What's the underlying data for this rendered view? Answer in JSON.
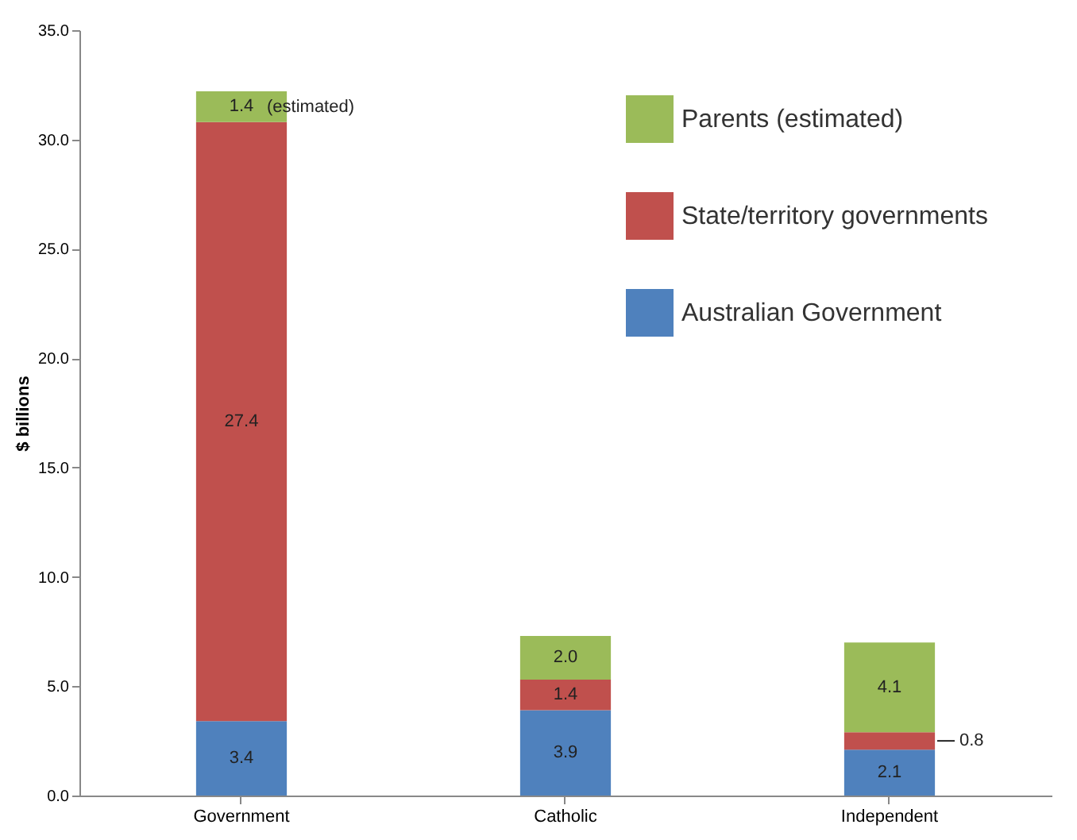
{
  "chart_data": {
    "type": "bar",
    "stacked": true,
    "ylabel": "$ billions",
    "categories": [
      "Government",
      "Catholic",
      "Independent"
    ],
    "series": [
      {
        "name": "Australian Government",
        "color": "#4f81bd",
        "values": [
          3.4,
          3.9,
          2.1
        ],
        "value_labels": [
          "3.4",
          "3.9",
          "2.1"
        ]
      },
      {
        "name": "State/territory governments",
        "color": "#c0504d",
        "values": [
          27.4,
          1.4,
          0.8
        ],
        "value_labels": [
          "27.4",
          "1.4",
          "0.8"
        ]
      },
      {
        "name": "Parents (estimated)",
        "color": "#9bbb59",
        "values": [
          1.4,
          2.0,
          4.1
        ],
        "value_labels": [
          "1.4",
          "2.0",
          "4.1"
        ]
      }
    ],
    "ylim": [
      0,
      35
    ],
    "yticks": [
      {
        "value": 0,
        "label": "0.0"
      },
      {
        "value": 5,
        "label": "5.0"
      },
      {
        "value": 10,
        "label": "10.0"
      },
      {
        "value": 15,
        "label": "15.0"
      },
      {
        "value": 20,
        "label": "20.0"
      },
      {
        "value": 25,
        "label": "25.0"
      },
      {
        "value": 30,
        "label": "30.0"
      },
      {
        "value": 35,
        "label": "35.0"
      }
    ],
    "annotations": [
      {
        "text": "(estimated)",
        "x": "Government",
        "y": 32.2
      }
    ],
    "grid": false,
    "legend": "top right"
  }
}
